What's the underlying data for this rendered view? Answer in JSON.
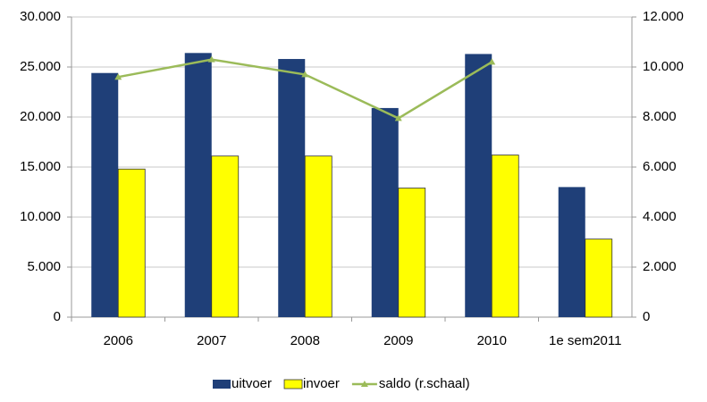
{
  "chart_data": {
    "type": "bar",
    "categories": [
      "2006",
      "2007",
      "2008",
      "2009",
      "2010",
      "1e sem2011"
    ],
    "series": [
      {
        "name": "uitvoer",
        "type": "bar",
        "color": "#1f3f78",
        "values": [
          24400,
          26400,
          25800,
          20900,
          26300,
          13000
        ]
      },
      {
        "name": "invoer",
        "type": "bar",
        "color": "#ffff00",
        "values": [
          14800,
          16100,
          16100,
          12900,
          16200,
          7800
        ]
      },
      {
        "name": "saldo (r.schaal)",
        "type": "line",
        "axis": "y2",
        "color": "#9bbb59",
        "values": [
          9600,
          10300,
          9700,
          7950,
          10200,
          null
        ]
      }
    ],
    "ylim": [
      0,
      30000
    ],
    "yticks": [
      0,
      {
        "value": 5000,
        "label": "5.000"
      },
      {
        "value": 10000,
        "label": "10.000"
      },
      {
        "value": 15000,
        "label": "15.000"
      },
      {
        "value": 20000,
        "label": "20.000"
      },
      {
        "value": 25000,
        "label": "25.000"
      },
      {
        "value": 30000,
        "label": "30.000"
      }
    ],
    "y2lim": [
      0,
      12000
    ],
    "y2ticks": [
      0,
      {
        "value": 2000,
        "label": "2.000"
      },
      {
        "value": 4000,
        "label": "4.000"
      },
      {
        "value": 6000,
        "label": "6.000"
      },
      {
        "value": 8000,
        "label": "8.000"
      },
      {
        "value": 10000,
        "label": "10.000"
      },
      {
        "value": 12000,
        "label": "12.000"
      }
    ],
    "grid": true,
    "legend": "bottom"
  }
}
